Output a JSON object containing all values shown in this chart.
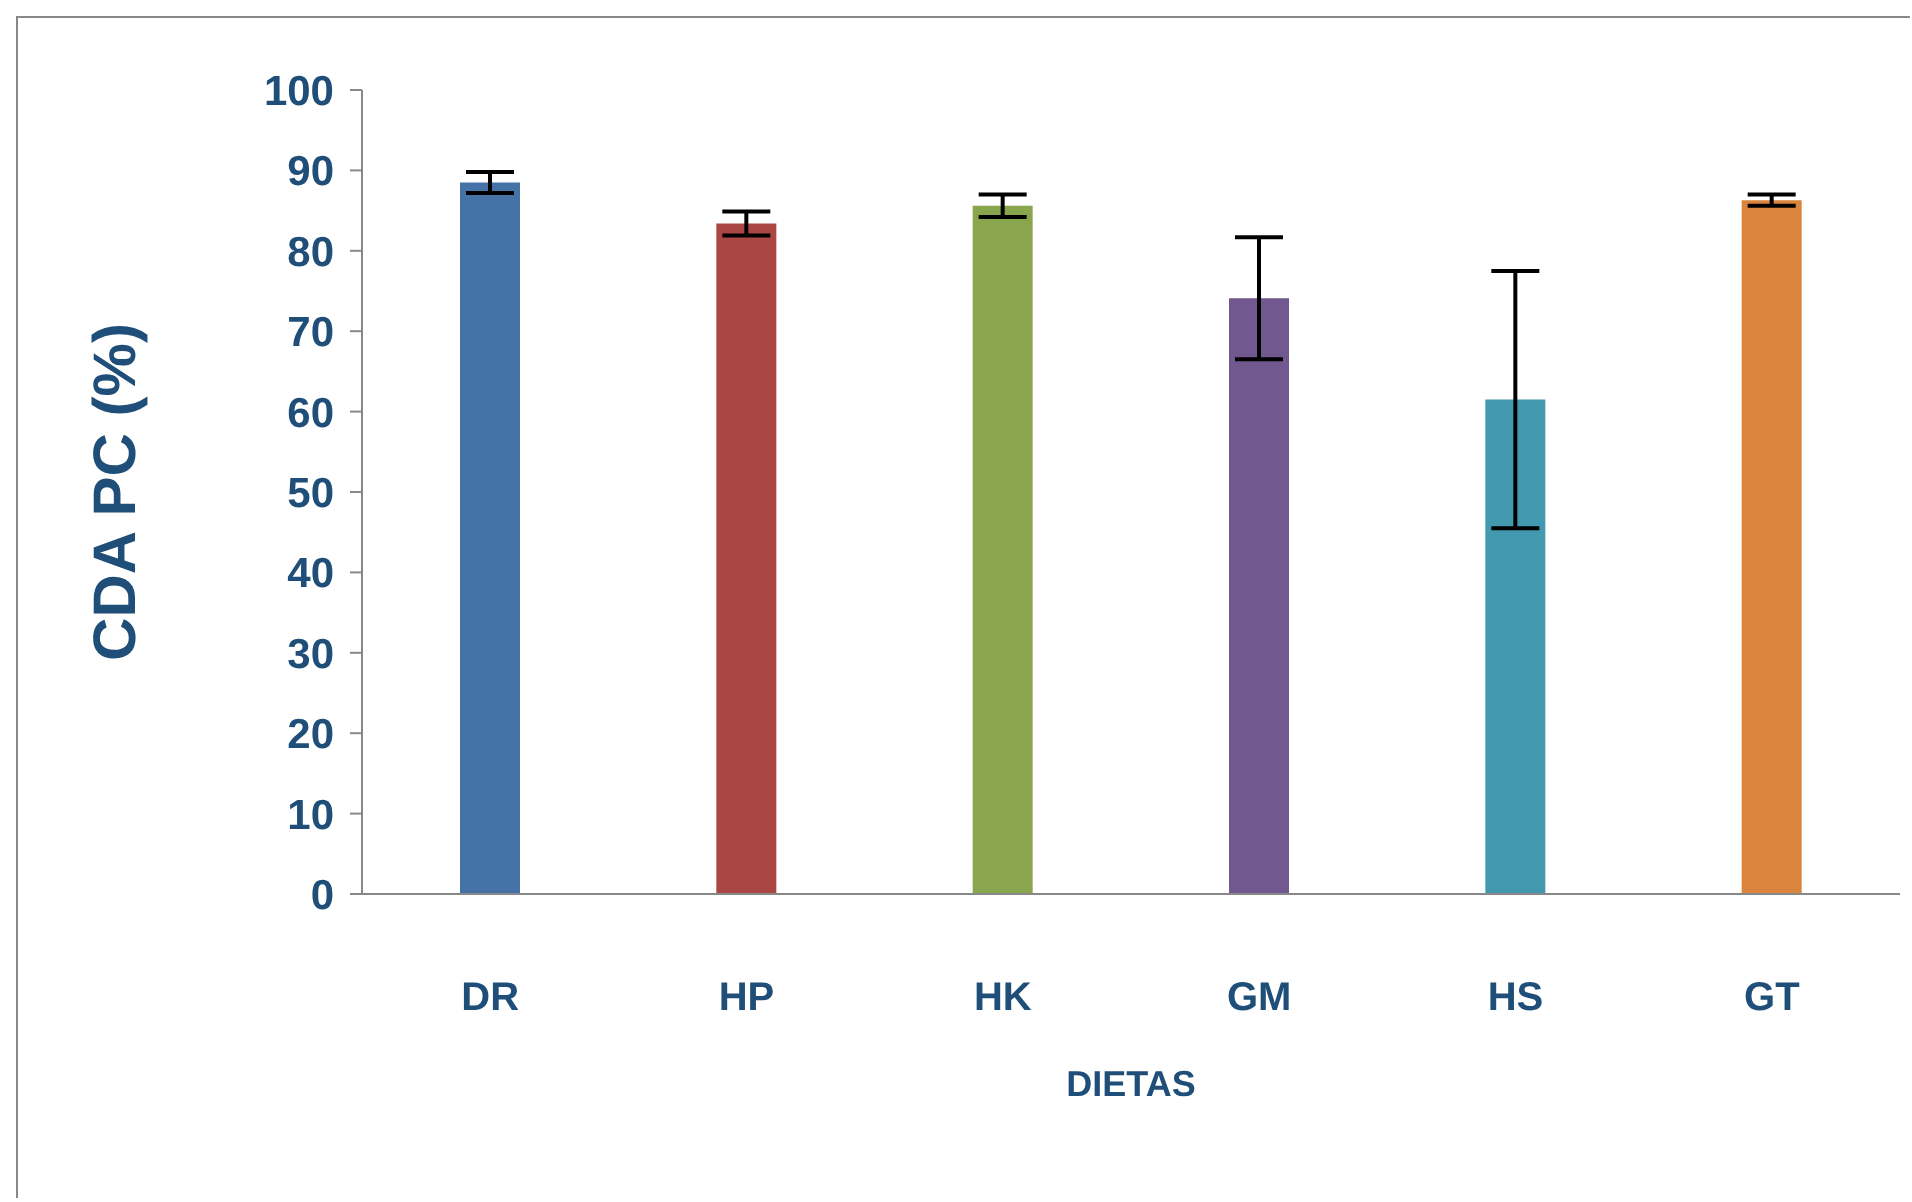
{
  "chart_data": {
    "type": "bar",
    "xlabel": "DIETAS",
    "ylabel": "CDA PC (%)",
    "categories": [
      "DR",
      "HP",
      "HK",
      "GM",
      "HS",
      "GT"
    ],
    "values": [
      88.5,
      83.4,
      85.6,
      74.1,
      61.5,
      86.3
    ],
    "errors": [
      1.3,
      1.5,
      1.4,
      7.6,
      16,
      0.7
    ],
    "colors": [
      "#4572a7",
      "#aa4643",
      "#89a54e",
      "#71588f",
      "#4198af",
      "#db843d"
    ],
    "ylim": [
      0,
      100
    ],
    "yticks": [
      0,
      10,
      20,
      30,
      40,
      50,
      60,
      70,
      80,
      90,
      100
    ],
    "grid": false,
    "legend": false
  }
}
